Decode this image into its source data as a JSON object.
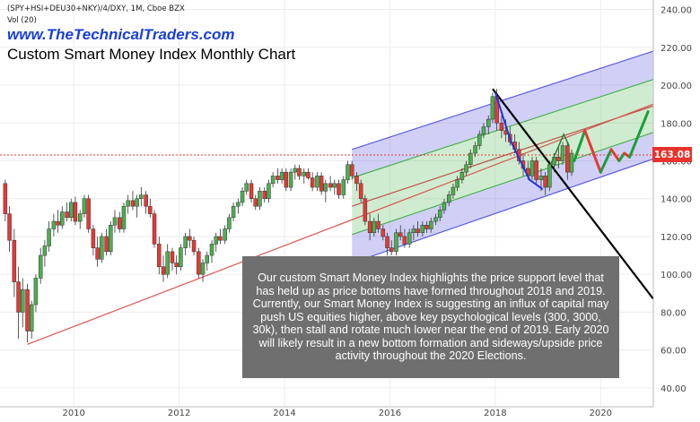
{
  "header": {
    "symbol": "(SPY+HSI+DEU30+NKY)/4/DXY, 1M, Cboe BZX",
    "volume": "Vol (20)",
    "site": "www.TheTechnicalTraders.com",
    "title": "Custom Smart Money Index Monthly Chart"
  },
  "annotation": "Our custom Smart Money Index highlights the price support level that has held up as price bottoms have formed throughout 2018 and 2019.  Currently, our Smart Money Index is suggesting an influx of capital may push US equities higher, above key psychological levels (300, 3000, 30k), then stall and rotate much lower near the end of 2019.  Early 2020 will likely result in a new bottom formation and sideways/upside price activity throughout the 2020 Elections.",
  "last_price_label": "163.08",
  "colors": {
    "up": "#4caf50",
    "down": "#e53935",
    "price_line": "#e53935",
    "channel_outer": "#5c5ce0",
    "channel_inner": "#4caf50",
    "trend_line": "#000000",
    "projection_up": "#1b9e3a",
    "projection_down": "#e53935",
    "site_text": "#1a3fd6"
  },
  "chart_data": {
    "type": "candlestick",
    "x_axis_ticks": [
      "2010",
      "2012",
      "2014",
      "2016",
      "2018",
      "2020"
    ],
    "y_axis_ticks": [
      40.0,
      60.0,
      80.0,
      100.0,
      120.0,
      140.0,
      160.0,
      180.0,
      200.0,
      220.0,
      240.0
    ],
    "ylim": [
      30,
      245
    ],
    "xlim": [
      2008.6,
      2021.0
    ],
    "last_price": 163.08,
    "candles": [
      {
        "t": 2008.7,
        "o": 148,
        "h": 150,
        "l": 128,
        "c": 132
      },
      {
        "t": 2008.78,
        "o": 132,
        "h": 136,
        "l": 112,
        "c": 118
      },
      {
        "t": 2008.87,
        "o": 118,
        "h": 124,
        "l": 88,
        "c": 96
      },
      {
        "t": 2008.95,
        "o": 96,
        "h": 104,
        "l": 66,
        "c": 80
      },
      {
        "t": 2009.03,
        "o": 80,
        "h": 98,
        "l": 72,
        "c": 92
      },
      {
        "t": 2009.12,
        "o": 92,
        "h": 95,
        "l": 64,
        "c": 70
      },
      {
        "t": 2009.2,
        "o": 70,
        "h": 86,
        "l": 66,
        "c": 84
      },
      {
        "t": 2009.28,
        "o": 84,
        "h": 100,
        "l": 80,
        "c": 98
      },
      {
        "t": 2009.37,
        "o": 98,
        "h": 114,
        "l": 95,
        "c": 110
      },
      {
        "t": 2009.45,
        "o": 110,
        "h": 118,
        "l": 104,
        "c": 115
      },
      {
        "t": 2009.53,
        "o": 115,
        "h": 128,
        "l": 112,
        "c": 124
      },
      {
        "t": 2009.62,
        "o": 124,
        "h": 132,
        "l": 120,
        "c": 128
      },
      {
        "t": 2009.7,
        "o": 128,
        "h": 134,
        "l": 122,
        "c": 126
      },
      {
        "t": 2009.78,
        "o": 126,
        "h": 136,
        "l": 124,
        "c": 133
      },
      {
        "t": 2009.87,
        "o": 133,
        "h": 138,
        "l": 128,
        "c": 130
      },
      {
        "t": 2009.95,
        "o": 130,
        "h": 140,
        "l": 128,
        "c": 138
      },
      {
        "t": 2010.03,
        "o": 138,
        "h": 141,
        "l": 126,
        "c": 128
      },
      {
        "t": 2010.12,
        "o": 128,
        "h": 134,
        "l": 124,
        "c": 132
      },
      {
        "t": 2010.2,
        "o": 132,
        "h": 142,
        "l": 130,
        "c": 140
      },
      {
        "t": 2010.28,
        "o": 140,
        "h": 142,
        "l": 122,
        "c": 124
      },
      {
        "t": 2010.37,
        "o": 124,
        "h": 126,
        "l": 110,
        "c": 114
      },
      {
        "t": 2010.45,
        "o": 114,
        "h": 120,
        "l": 104,
        "c": 108
      },
      {
        "t": 2010.53,
        "o": 108,
        "h": 122,
        "l": 106,
        "c": 120
      },
      {
        "t": 2010.62,
        "o": 120,
        "h": 124,
        "l": 110,
        "c": 112
      },
      {
        "t": 2010.7,
        "o": 112,
        "h": 128,
        "l": 110,
        "c": 126
      },
      {
        "t": 2010.78,
        "o": 126,
        "h": 134,
        "l": 122,
        "c": 130
      },
      {
        "t": 2010.87,
        "o": 130,
        "h": 133,
        "l": 122,
        "c": 124
      },
      {
        "t": 2010.95,
        "o": 124,
        "h": 138,
        "l": 122,
        "c": 136
      },
      {
        "t": 2011.03,
        "o": 136,
        "h": 142,
        "l": 132,
        "c": 139
      },
      {
        "t": 2011.12,
        "o": 139,
        "h": 144,
        "l": 134,
        "c": 136
      },
      {
        "t": 2011.2,
        "o": 136,
        "h": 142,
        "l": 130,
        "c": 140
      },
      {
        "t": 2011.28,
        "o": 140,
        "h": 146,
        "l": 136,
        "c": 142
      },
      {
        "t": 2011.37,
        "o": 142,
        "h": 144,
        "l": 132,
        "c": 136
      },
      {
        "t": 2011.45,
        "o": 136,
        "h": 140,
        "l": 130,
        "c": 132
      },
      {
        "t": 2011.53,
        "o": 132,
        "h": 134,
        "l": 114,
        "c": 116
      },
      {
        "t": 2011.62,
        "o": 116,
        "h": 120,
        "l": 100,
        "c": 104
      },
      {
        "t": 2011.7,
        "o": 104,
        "h": 110,
        "l": 96,
        "c": 100
      },
      {
        "t": 2011.78,
        "o": 100,
        "h": 116,
        "l": 98,
        "c": 112
      },
      {
        "t": 2011.87,
        "o": 112,
        "h": 114,
        "l": 102,
        "c": 106
      },
      {
        "t": 2011.95,
        "o": 106,
        "h": 110,
        "l": 100,
        "c": 104
      },
      {
        "t": 2012.03,
        "o": 104,
        "h": 116,
        "l": 102,
        "c": 114
      },
      {
        "t": 2012.12,
        "o": 114,
        "h": 122,
        "l": 110,
        "c": 120
      },
      {
        "t": 2012.2,
        "o": 120,
        "h": 124,
        "l": 114,
        "c": 118
      },
      {
        "t": 2012.28,
        "o": 118,
        "h": 120,
        "l": 110,
        "c": 112
      },
      {
        "t": 2012.37,
        "o": 112,
        "h": 114,
        "l": 98,
        "c": 100
      },
      {
        "t": 2012.45,
        "o": 100,
        "h": 108,
        "l": 96,
        "c": 106
      },
      {
        "t": 2012.53,
        "o": 106,
        "h": 112,
        "l": 102,
        "c": 110
      },
      {
        "t": 2012.62,
        "o": 110,
        "h": 118,
        "l": 106,
        "c": 116
      },
      {
        "t": 2012.7,
        "o": 116,
        "h": 122,
        "l": 112,
        "c": 120
      },
      {
        "t": 2012.78,
        "o": 120,
        "h": 124,
        "l": 116,
        "c": 118
      },
      {
        "t": 2012.87,
        "o": 118,
        "h": 126,
        "l": 116,
        "c": 124
      },
      {
        "t": 2012.95,
        "o": 124,
        "h": 132,
        "l": 122,
        "c": 130
      },
      {
        "t": 2013.03,
        "o": 130,
        "h": 138,
        "l": 128,
        "c": 136
      },
      {
        "t": 2013.12,
        "o": 136,
        "h": 140,
        "l": 132,
        "c": 138
      },
      {
        "t": 2013.2,
        "o": 138,
        "h": 146,
        "l": 136,
        "c": 144
      },
      {
        "t": 2013.28,
        "o": 144,
        "h": 150,
        "l": 142,
        "c": 148
      },
      {
        "t": 2013.37,
        "o": 148,
        "h": 150,
        "l": 138,
        "c": 140
      },
      {
        "t": 2013.45,
        "o": 140,
        "h": 142,
        "l": 134,
        "c": 136
      },
      {
        "t": 2013.53,
        "o": 136,
        "h": 146,
        "l": 134,
        "c": 144
      },
      {
        "t": 2013.62,
        "o": 144,
        "h": 146,
        "l": 138,
        "c": 140
      },
      {
        "t": 2013.7,
        "o": 140,
        "h": 150,
        "l": 138,
        "c": 148
      },
      {
        "t": 2013.78,
        "o": 148,
        "h": 154,
        "l": 146,
        "c": 152
      },
      {
        "t": 2013.87,
        "o": 152,
        "h": 156,
        "l": 148,
        "c": 150
      },
      {
        "t": 2013.95,
        "o": 150,
        "h": 156,
        "l": 148,
        "c": 154
      },
      {
        "t": 2014.03,
        "o": 154,
        "h": 156,
        "l": 144,
        "c": 146
      },
      {
        "t": 2014.12,
        "o": 146,
        "h": 156,
        "l": 144,
        "c": 154
      },
      {
        "t": 2014.2,
        "o": 154,
        "h": 158,
        "l": 150,
        "c": 156
      },
      {
        "t": 2014.28,
        "o": 156,
        "h": 158,
        "l": 150,
        "c": 152
      },
      {
        "t": 2014.37,
        "o": 152,
        "h": 156,
        "l": 148,
        "c": 154
      },
      {
        "t": 2014.45,
        "o": 154,
        "h": 156,
        "l": 150,
        "c": 151
      },
      {
        "t": 2014.53,
        "o": 151,
        "h": 154,
        "l": 144,
        "c": 146
      },
      {
        "t": 2014.62,
        "o": 146,
        "h": 154,
        "l": 144,
        "c": 152
      },
      {
        "t": 2014.7,
        "o": 152,
        "h": 154,
        "l": 142,
        "c": 144
      },
      {
        "t": 2014.78,
        "o": 144,
        "h": 150,
        "l": 138,
        "c": 148
      },
      {
        "t": 2014.87,
        "o": 148,
        "h": 152,
        "l": 144,
        "c": 146
      },
      {
        "t": 2014.95,
        "o": 146,
        "h": 150,
        "l": 142,
        "c": 148
      },
      {
        "t": 2015.03,
        "o": 148,
        "h": 150,
        "l": 140,
        "c": 142
      },
      {
        "t": 2015.12,
        "o": 142,
        "h": 152,
        "l": 140,
        "c": 150
      },
      {
        "t": 2015.2,
        "o": 150,
        "h": 160,
        "l": 148,
        "c": 158
      },
      {
        "t": 2015.28,
        "o": 158,
        "h": 160,
        "l": 150,
        "c": 152
      },
      {
        "t": 2015.37,
        "o": 152,
        "h": 154,
        "l": 144,
        "c": 148
      },
      {
        "t": 2015.45,
        "o": 148,
        "h": 150,
        "l": 138,
        "c": 140
      },
      {
        "t": 2015.53,
        "o": 140,
        "h": 142,
        "l": 126,
        "c": 128
      },
      {
        "t": 2015.62,
        "o": 128,
        "h": 132,
        "l": 118,
        "c": 122
      },
      {
        "t": 2015.7,
        "o": 122,
        "h": 130,
        "l": 120,
        "c": 128
      },
      {
        "t": 2015.78,
        "o": 128,
        "h": 132,
        "l": 122,
        "c": 124
      },
      {
        "t": 2015.87,
        "o": 124,
        "h": 126,
        "l": 118,
        "c": 120
      },
      {
        "t": 2015.95,
        "o": 120,
        "h": 122,
        "l": 110,
        "c": 114
      },
      {
        "t": 2016.03,
        "o": 114,
        "h": 118,
        "l": 110,
        "c": 112
      },
      {
        "t": 2016.12,
        "o": 112,
        "h": 124,
        "l": 110,
        "c": 122
      },
      {
        "t": 2016.2,
        "o": 122,
        "h": 126,
        "l": 118,
        "c": 120
      },
      {
        "t": 2016.28,
        "o": 120,
        "h": 124,
        "l": 114,
        "c": 116
      },
      {
        "t": 2016.37,
        "o": 116,
        "h": 124,
        "l": 114,
        "c": 122
      },
      {
        "t": 2016.45,
        "o": 122,
        "h": 126,
        "l": 118,
        "c": 124
      },
      {
        "t": 2016.53,
        "o": 124,
        "h": 128,
        "l": 120,
        "c": 122
      },
      {
        "t": 2016.62,
        "o": 122,
        "h": 128,
        "l": 120,
        "c": 126
      },
      {
        "t": 2016.7,
        "o": 126,
        "h": 128,
        "l": 122,
        "c": 124
      },
      {
        "t": 2016.78,
        "o": 124,
        "h": 130,
        "l": 122,
        "c": 128
      },
      {
        "t": 2016.87,
        "o": 128,
        "h": 132,
        "l": 126,
        "c": 130
      },
      {
        "t": 2016.95,
        "o": 130,
        "h": 136,
        "l": 128,
        "c": 134
      },
      {
        "t": 2017.03,
        "o": 134,
        "h": 140,
        "l": 132,
        "c": 138
      },
      {
        "t": 2017.12,
        "o": 138,
        "h": 144,
        "l": 136,
        "c": 142
      },
      {
        "t": 2017.2,
        "o": 142,
        "h": 148,
        "l": 140,
        "c": 146
      },
      {
        "t": 2017.28,
        "o": 146,
        "h": 152,
        "l": 144,
        "c": 150
      },
      {
        "t": 2017.37,
        "o": 150,
        "h": 156,
        "l": 148,
        "c": 154
      },
      {
        "t": 2017.45,
        "o": 154,
        "h": 160,
        "l": 152,
        "c": 158
      },
      {
        "t": 2017.53,
        "o": 158,
        "h": 166,
        "l": 156,
        "c": 164
      },
      {
        "t": 2017.62,
        "o": 164,
        "h": 170,
        "l": 162,
        "c": 168
      },
      {
        "t": 2017.7,
        "o": 168,
        "h": 176,
        "l": 166,
        "c": 174
      },
      {
        "t": 2017.78,
        "o": 174,
        "h": 180,
        "l": 172,
        "c": 178
      },
      {
        "t": 2017.87,
        "o": 178,
        "h": 184,
        "l": 174,
        "c": 182
      },
      {
        "t": 2017.95,
        "o": 182,
        "h": 196,
        "l": 180,
        "c": 194
      },
      {
        "t": 2018.03,
        "o": 194,
        "h": 198,
        "l": 176,
        "c": 180
      },
      {
        "t": 2018.12,
        "o": 180,
        "h": 184,
        "l": 172,
        "c": 176
      },
      {
        "t": 2018.2,
        "o": 176,
        "h": 182,
        "l": 170,
        "c": 174
      },
      {
        "t": 2018.28,
        "o": 174,
        "h": 178,
        "l": 168,
        "c": 170
      },
      {
        "t": 2018.37,
        "o": 170,
        "h": 174,
        "l": 164,
        "c": 166
      },
      {
        "t": 2018.45,
        "o": 166,
        "h": 170,
        "l": 158,
        "c": 160
      },
      {
        "t": 2018.53,
        "o": 160,
        "h": 164,
        "l": 152,
        "c": 156
      },
      {
        "t": 2018.62,
        "o": 156,
        "h": 160,
        "l": 150,
        "c": 152
      },
      {
        "t": 2018.7,
        "o": 152,
        "h": 162,
        "l": 150,
        "c": 160
      },
      {
        "t": 2018.78,
        "o": 160,
        "h": 162,
        "l": 148,
        "c": 150
      },
      {
        "t": 2018.87,
        "o": 150,
        "h": 156,
        "l": 144,
        "c": 152
      },
      {
        "t": 2018.95,
        "o": 152,
        "h": 154,
        "l": 142,
        "c": 146
      },
      {
        "t": 2019.03,
        "o": 146,
        "h": 160,
        "l": 144,
        "c": 158
      },
      {
        "t": 2019.12,
        "o": 158,
        "h": 164,
        "l": 154,
        "c": 162
      },
      {
        "t": 2019.2,
        "o": 162,
        "h": 168,
        "l": 156,
        "c": 160
      },
      {
        "t": 2019.28,
        "o": 160,
        "h": 170,
        "l": 158,
        "c": 168
      },
      {
        "t": 2019.37,
        "o": 168,
        "h": 170,
        "l": 150,
        "c": 154
      },
      {
        "t": 2019.45,
        "o": 154,
        "h": 166,
        "l": 152,
        "c": 164
      }
    ]
  }
}
